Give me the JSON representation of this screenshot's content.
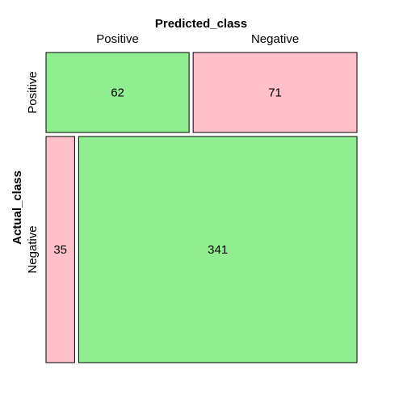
{
  "chart_data": {
    "type": "mosaic",
    "xlabel": "Predicted_class",
    "ylabel": "Actual_class",
    "x_categories": [
      "Positive",
      "Negative"
    ],
    "y_categories": [
      "Positive",
      "Negative"
    ],
    "cells": [
      {
        "actual": "Positive",
        "predicted": "Positive",
        "value": 62,
        "correct": true
      },
      {
        "actual": "Positive",
        "predicted": "Negative",
        "value": 71,
        "correct": false
      },
      {
        "actual": "Negative",
        "predicted": "Positive",
        "value": 35,
        "correct": false
      },
      {
        "actual": "Negative",
        "predicted": "Negative",
        "value": 341,
        "correct": true
      }
    ],
    "colors": {
      "correct": "#90ee90",
      "incorrect": "#ffc0cb"
    }
  }
}
